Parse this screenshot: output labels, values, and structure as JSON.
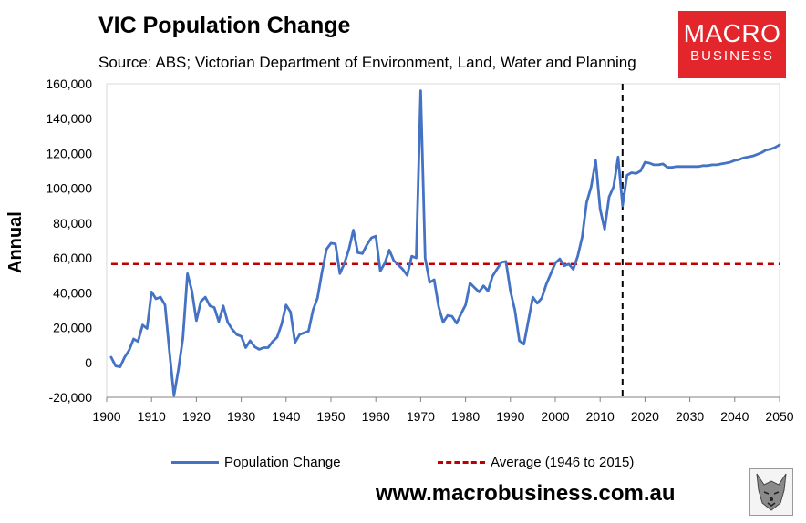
{
  "header": {
    "title": "VIC Population Change",
    "subtitle": "Source: ABS; Victorian Department of Environment, Land, Water and Planning"
  },
  "logo": {
    "line1": "MACRO",
    "line2": "BUSINESS"
  },
  "footer": {
    "website": "www.macrobusiness.com.au"
  },
  "colors": {
    "series": "#4472c4",
    "average": "#c00000",
    "logo": "#e2262c"
  },
  "chart_data": {
    "type": "line",
    "title": "VIC Population Change",
    "ylabel": "Annual",
    "xlabel": "",
    "xlim": [
      1900,
      2050
    ],
    "ylim": [
      -20000,
      160000
    ],
    "x_ticks": [
      1900,
      1910,
      1920,
      1930,
      1940,
      1950,
      1960,
      1970,
      1980,
      1990,
      2000,
      2010,
      2020,
      2030,
      2040,
      2050
    ],
    "y_ticks": [
      -20000,
      0,
      20000,
      40000,
      60000,
      80000,
      100000,
      120000,
      140000,
      160000
    ],
    "y_tick_labels": [
      "-20,000",
      "0",
      "20,000",
      "40,000",
      "60,000",
      "80,000",
      "100,000",
      "120,000",
      "140,000",
      "160,000"
    ],
    "vertical_marker_x": 2015,
    "legend_position": "bottom",
    "series": [
      {
        "name": "Population Change",
        "style": "solid",
        "points": [
          [
            1901,
            3000
          ],
          [
            1902,
            -2000
          ],
          [
            1903,
            -2500
          ],
          [
            1904,
            3000
          ],
          [
            1905,
            7000
          ],
          [
            1906,
            13500
          ],
          [
            1907,
            12000
          ],
          [
            1908,
            21500
          ],
          [
            1909,
            19500
          ],
          [
            1910,
            40500
          ],
          [
            1911,
            36500
          ],
          [
            1912,
            37500
          ],
          [
            1913,
            33000
          ],
          [
            1914,
            6000
          ],
          [
            1915,
            -19000
          ],
          [
            1916,
            -4000
          ],
          [
            1917,
            14000
          ],
          [
            1918,
            51000
          ],
          [
            1919,
            41000
          ],
          [
            1920,
            24000
          ],
          [
            1921,
            35000
          ],
          [
            1922,
            37500
          ],
          [
            1923,
            32500
          ],
          [
            1924,
            31500
          ],
          [
            1925,
            23500
          ],
          [
            1926,
            32500
          ],
          [
            1927,
            23000
          ],
          [
            1928,
            19000
          ],
          [
            1929,
            16000
          ],
          [
            1930,
            15000
          ],
          [
            1931,
            8500
          ],
          [
            1932,
            12500
          ],
          [
            1933,
            9000
          ],
          [
            1934,
            7500
          ],
          [
            1935,
            8500
          ],
          [
            1936,
            8500
          ],
          [
            1937,
            12000
          ],
          [
            1938,
            14500
          ],
          [
            1939,
            22000
          ],
          [
            1940,
            33000
          ],
          [
            1941,
            29000
          ],
          [
            1942,
            11500
          ],
          [
            1943,
            16000
          ],
          [
            1944,
            17000
          ],
          [
            1945,
            18000
          ],
          [
            1946,
            30000
          ],
          [
            1947,
            37000
          ],
          [
            1948,
            52000
          ],
          [
            1949,
            65000
          ],
          [
            1950,
            68500
          ],
          [
            1951,
            68000
          ],
          [
            1952,
            51000
          ],
          [
            1953,
            57000
          ],
          [
            1954,
            65000
          ],
          [
            1955,
            76000
          ],
          [
            1956,
            63000
          ],
          [
            1957,
            62500
          ],
          [
            1958,
            67500
          ],
          [
            1959,
            71500
          ],
          [
            1960,
            72500
          ],
          [
            1961,
            52500
          ],
          [
            1962,
            57000
          ],
          [
            1963,
            64500
          ],
          [
            1964,
            58500
          ],
          [
            1965,
            56000
          ],
          [
            1966,
            53500
          ],
          [
            1967,
            50000
          ],
          [
            1968,
            61000
          ],
          [
            1969,
            60000
          ],
          [
            1970,
            156000
          ],
          [
            1971,
            60000
          ],
          [
            1972,
            46000
          ],
          [
            1973,
            47500
          ],
          [
            1974,
            32000
          ],
          [
            1975,
            23000
          ],
          [
            1976,
            27000
          ],
          [
            1977,
            26500
          ],
          [
            1978,
            22500
          ],
          [
            1979,
            28000
          ],
          [
            1980,
            33000
          ],
          [
            1981,
            45500
          ],
          [
            1982,
            43000
          ],
          [
            1983,
            40500
          ],
          [
            1984,
            44000
          ],
          [
            1985,
            41000
          ],
          [
            1986,
            49500
          ],
          [
            1987,
            53500
          ],
          [
            1988,
            57500
          ],
          [
            1989,
            58000
          ],
          [
            1990,
            41000
          ],
          [
            1991,
            30000
          ],
          [
            1992,
            12500
          ],
          [
            1993,
            10500
          ],
          [
            1994,
            24000
          ],
          [
            1995,
            37500
          ],
          [
            1996,
            34000
          ],
          [
            1997,
            37000
          ],
          [
            1998,
            45000
          ],
          [
            1999,
            51000
          ],
          [
            2000,
            57000
          ],
          [
            2001,
            59500
          ],
          [
            2002,
            55500
          ],
          [
            2003,
            56500
          ],
          [
            2004,
            53500
          ],
          [
            2005,
            61000
          ],
          [
            2006,
            72000
          ],
          [
            2007,
            92000
          ],
          [
            2008,
            101000
          ],
          [
            2009,
            116000
          ],
          [
            2010,
            88000
          ],
          [
            2011,
            76500
          ],
          [
            2012,
            95000
          ],
          [
            2013,
            101000
          ],
          [
            2014,
            118000
          ],
          [
            2015,
            90000
          ],
          [
            2016,
            107500
          ],
          [
            2017,
            109000
          ],
          [
            2018,
            108500
          ],
          [
            2019,
            110000
          ],
          [
            2020,
            115000
          ],
          [
            2021,
            114500
          ],
          [
            2022,
            113500
          ],
          [
            2023,
            113500
          ],
          [
            2024,
            114000
          ],
          [
            2025,
            112000
          ],
          [
            2026,
            112000
          ],
          [
            2027,
            112500
          ],
          [
            2028,
            112500
          ],
          [
            2029,
            112500
          ],
          [
            2030,
            112500
          ],
          [
            2031,
            112500
          ],
          [
            2032,
            112500
          ],
          [
            2033,
            113000
          ],
          [
            2034,
            113000
          ],
          [
            2035,
            113500
          ],
          [
            2036,
            113500
          ],
          [
            2037,
            114000
          ],
          [
            2038,
            114500
          ],
          [
            2039,
            115000
          ],
          [
            2040,
            116000
          ],
          [
            2041,
            116500
          ],
          [
            2042,
            117500
          ],
          [
            2043,
            118000
          ],
          [
            2044,
            118500
          ],
          [
            2045,
            119500
          ],
          [
            2046,
            120500
          ],
          [
            2047,
            122000
          ],
          [
            2048,
            122500
          ],
          [
            2049,
            123500
          ],
          [
            2050,
            125000
          ]
        ]
      },
      {
        "name": "Average (1946 to 2015)",
        "style": "dashed",
        "value": 56500,
        "x_range": [
          1901,
          2050
        ]
      }
    ]
  }
}
